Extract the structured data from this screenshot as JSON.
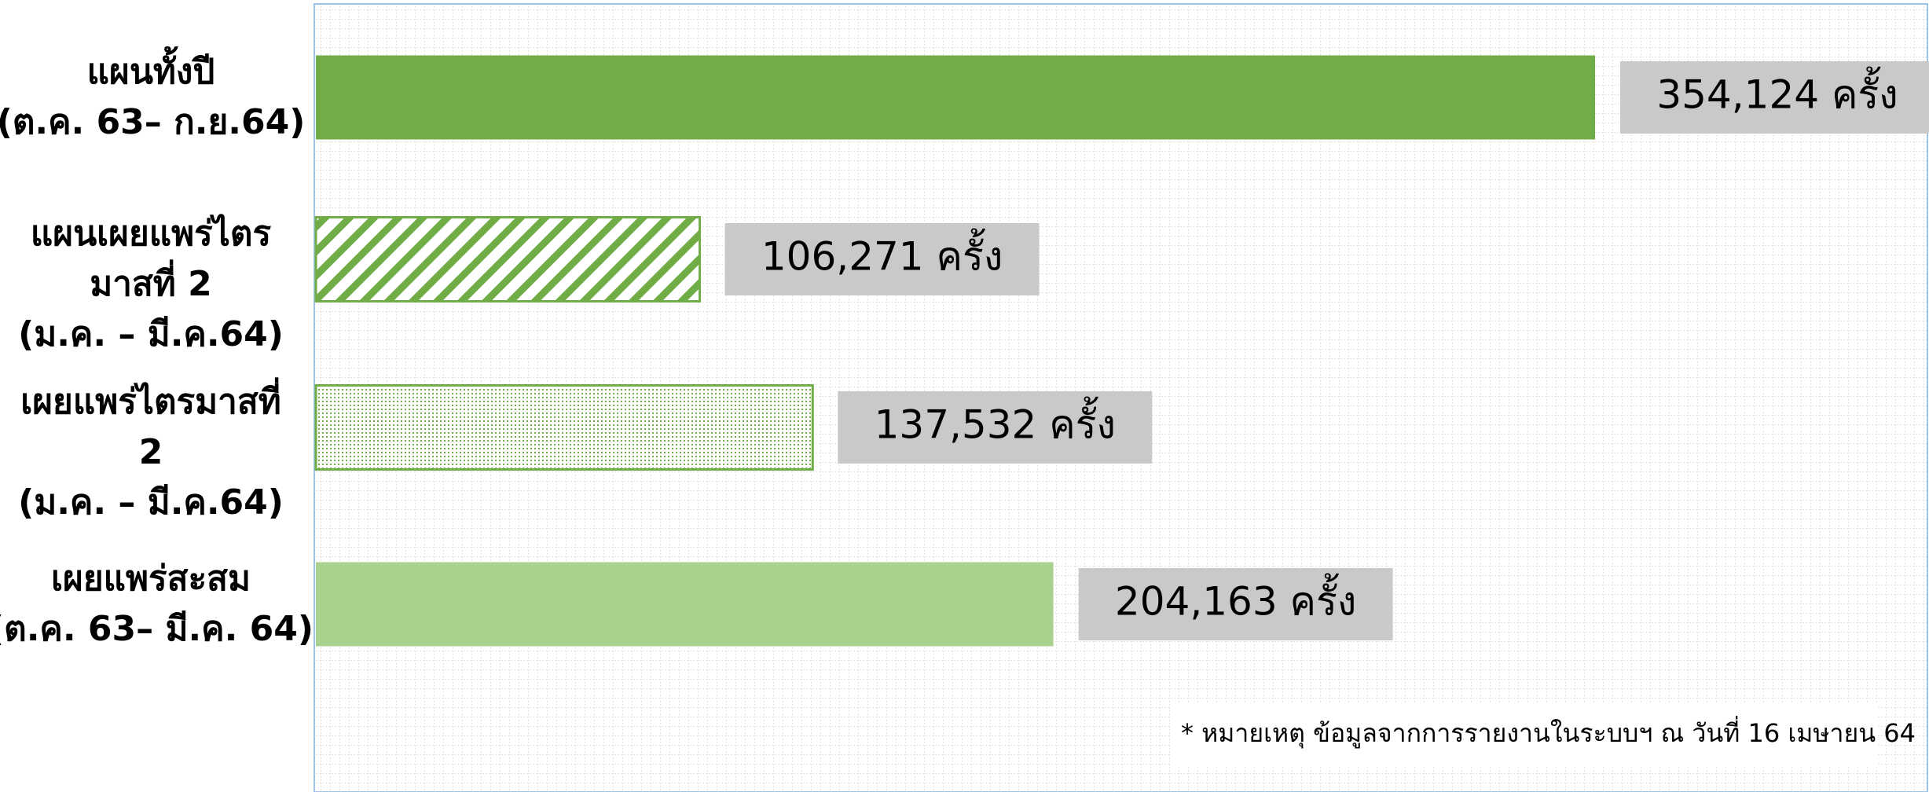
{
  "chart_data": {
    "type": "bar",
    "orientation": "horizontal",
    "categories": [
      "แผนทั้งปี\n(ต.ค. 63– ก.ย.64)",
      "แผนเผยแพร่ไตร\nมาสที่ 2\n(ม.ค. – มี.ค.64)",
      "เผยแพร่ไตรมาสที่\n2\n(ม.ค. – มี.ค.64)",
      "เผยแพร่สะสม\n(ต.ค. 63– มี.ค. 64)"
    ],
    "values": [
      354124,
      106271,
      137532,
      204163
    ],
    "value_labels": [
      "354,124 ครั้ง",
      "106,271 ครั้ง",
      "137,532  ครั้ง",
      "204,163  ครั้ง"
    ],
    "colors": [
      "#70ad47",
      "#70ad47",
      "#70ad47",
      "#a9d18e"
    ],
    "patterns": [
      "solid",
      "hatch",
      "dots",
      "solid"
    ],
    "annotation": "* หมายเหตุ ข้อมูลจากการรายงานในระบบฯ ณ วันที่ 16 เมษายน 64"
  }
}
